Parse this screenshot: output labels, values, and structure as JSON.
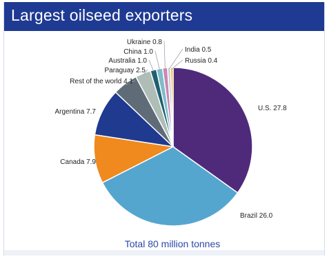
{
  "title": "Largest oilseed exporters",
  "total_label": "Total 80 million tonnes",
  "colors": {
    "title_bg": "#1f3a93",
    "total_text": "#2b4aa3"
  },
  "chart_data": {
    "type": "pie",
    "title": "Largest oilseed exporters",
    "total": "Total 80 million tonnes",
    "slices": [
      {
        "label": "U.S. 27.8",
        "value": 27.8,
        "color": "#4f2a7b"
      },
      {
        "label": "Brazil 26.0",
        "value": 26.0,
        "color": "#55a6cf"
      },
      {
        "label": "Canada 7.9",
        "value": 7.9,
        "color": "#f0891e"
      },
      {
        "label": "Argentina 7.7",
        "value": 7.7,
        "color": "#1f3a8f"
      },
      {
        "label": "Rest of the world 4.1",
        "value": 4.1,
        "color": "#5f6c78"
      },
      {
        "label": "Paraguay 2.5",
        "value": 2.5,
        "color": "#aebdb6"
      },
      {
        "label": "Australia 1.0",
        "value": 1.0,
        "color": "#1f6070"
      },
      {
        "label": "China 1.0",
        "value": 1.0,
        "color": "#7fbcc8"
      },
      {
        "label": "Ukraine 0.8",
        "value": 0.8,
        "color": "#c889b5"
      },
      {
        "label": "India 0.5",
        "value": 0.5,
        "color": "#c8ced6"
      },
      {
        "label": "Russia 0.4",
        "value": 0.4,
        "color": "#f2b23a"
      }
    ]
  }
}
